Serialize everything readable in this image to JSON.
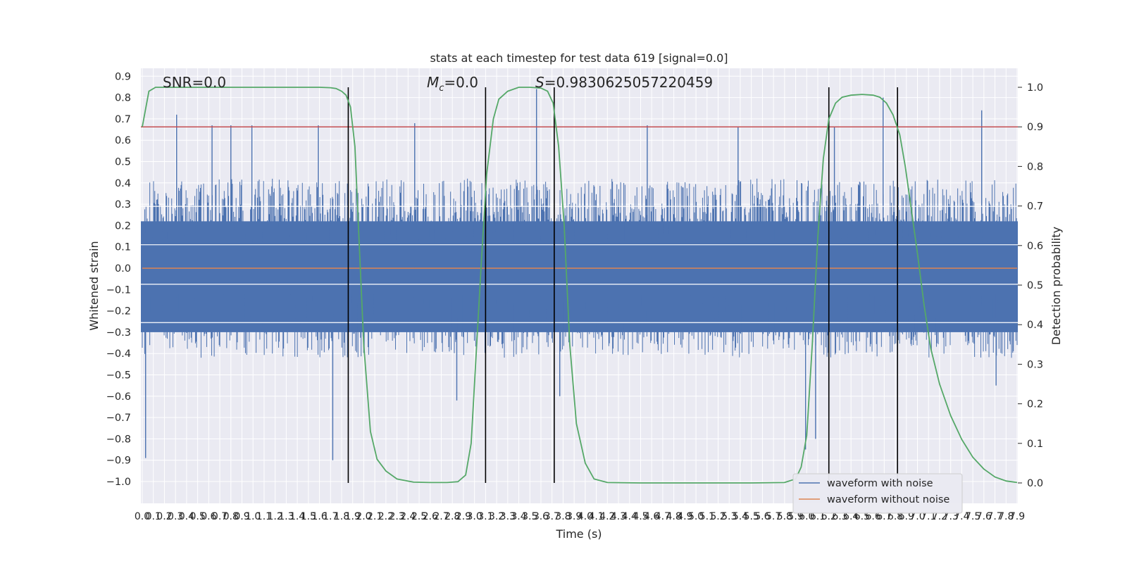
{
  "chart_data": {
    "type": "line",
    "title": "stats at each timestep for test data 619 [signal=0.0]",
    "xlabel": "Time (s)",
    "ylabel_left": "Whitened strain",
    "ylabel_right": "Detection probability",
    "xlim": [
      0.0,
      7.9
    ],
    "ylim_left": [
      -1.0,
      0.9
    ],
    "ylim_right": [
      0.0,
      1.0
    ],
    "x_ticks": [
      "0.0",
      "0.1",
      "0.2",
      "0.3",
      "0.4",
      "0.5",
      "0.6",
      "0.7",
      "0.8",
      "0.9",
      "1.0",
      "1.1",
      "1.2",
      "1.3",
      "1.4",
      "1.5",
      "1.6",
      "1.7",
      "1.8",
      "1.9",
      "2.0",
      "2.1",
      "2.2",
      "2.3",
      "2.4",
      "2.5",
      "2.6",
      "2.7",
      "2.8",
      "2.9",
      "3.0",
      "3.1",
      "3.2",
      "3.3",
      "3.4",
      "3.5",
      "3.6",
      "3.7",
      "3.8",
      "3.9",
      "4.0",
      "4.1",
      "4.2",
      "4.3",
      "4.4",
      "4.5",
      "4.6",
      "4.7",
      "4.8",
      "4.9",
      "5.0",
      "5.1",
      "5.2",
      "5.3",
      "5.4",
      "5.5",
      "5.6",
      "5.7",
      "5.8",
      "5.9",
      "6.0",
      "6.1",
      "6.2",
      "6.3",
      "6.4",
      "6.5",
      "6.6",
      "6.7",
      "6.8",
      "6.9",
      "7.0",
      "7.1",
      "7.2",
      "7.3",
      "7.4",
      "7.5",
      "7.6",
      "7.7",
      "7.8",
      "7.9"
    ],
    "y_ticks_left": [
      "0.9",
      "0.8",
      "0.7",
      "0.6",
      "0.5",
      "0.4",
      "0.3",
      "0.2",
      "0.1",
      "0.0",
      "−0.1",
      "−0.2",
      "−0.3",
      "−0.4",
      "−0.5",
      "−0.6",
      "−0.7",
      "−0.8",
      "−0.9",
      "−1.0"
    ],
    "y_ticks_right": [
      "1.0",
      "0.9",
      "0.8",
      "0.7",
      "0.6",
      "0.5",
      "0.4",
      "0.3",
      "0.2",
      "0.1",
      "0.0"
    ],
    "annotations": {
      "snr": "SNR=0.0",
      "mc": "M_c=0.0",
      "s": "S=0.9830625057220459"
    },
    "threshold_right": 0.9,
    "vertical_lines_x": [
      1.86,
      3.1,
      3.72,
      6.2,
      6.82
    ],
    "series": [
      {
        "name": "waveform with noise",
        "color": "#4c72b0",
        "axis": "left",
        "kind": "noise",
        "peaks_x": [
          0.03,
          0.31,
          0.63,
          0.8,
          0.99,
          1.59,
          1.72,
          2.46,
          2.84,
          3.56,
          3.77,
          4.56,
          5.38,
          5.99,
          6.08,
          6.25,
          6.69,
          6.82,
          7.58,
          7.71
        ],
        "peaks_y": [
          -0.89,
          0.72,
          0.67,
          0.67,
          0.67,
          0.67,
          -0.9,
          0.68,
          -0.62,
          0.84,
          -0.6,
          0.67,
          0.66,
          -0.85,
          -0.8,
          0.66,
          0.8,
          -0.78,
          0.74,
          -0.55
        ]
      },
      {
        "name": "waveform without noise",
        "color": "#dd8452",
        "axis": "left",
        "kind": "flat",
        "x": [
          0.0,
          7.9
        ],
        "y": [
          0.0,
          0.0
        ]
      },
      {
        "name": "Detection probability",
        "color": "#55a868",
        "axis": "right",
        "kind": "line",
        "x": [
          0.0,
          0.06,
          0.12,
          0.3,
          0.6,
          1.0,
          1.4,
          1.6,
          1.7,
          1.75,
          1.8,
          1.84,
          1.88,
          1.92,
          1.96,
          2.0,
          2.06,
          2.12,
          2.2,
          2.3,
          2.45,
          2.6,
          2.75,
          2.85,
          2.92,
          2.97,
          3.01,
          3.06,
          3.11,
          3.17,
          3.22,
          3.3,
          3.4,
          3.5,
          3.6,
          3.66,
          3.71,
          3.76,
          3.81,
          3.86,
          3.92,
          4.0,
          4.08,
          4.2,
          4.5,
          5.0,
          5.5,
          5.8,
          5.9,
          5.95,
          6.0,
          6.05,
          6.1,
          6.15,
          6.2,
          6.26,
          6.32,
          6.4,
          6.5,
          6.6,
          6.66,
          6.72,
          6.78,
          6.84,
          6.89,
          6.94,
          7.0,
          7.06,
          7.12,
          7.2,
          7.3,
          7.4,
          7.5,
          7.6,
          7.7,
          7.8,
          7.9
        ],
        "y": [
          0.9,
          0.99,
          1.0,
          1.0,
          1.0,
          1.0,
          1.0,
          1.0,
          0.999,
          0.997,
          0.99,
          0.98,
          0.95,
          0.85,
          0.6,
          0.35,
          0.13,
          0.06,
          0.03,
          0.01,
          0.002,
          0.001,
          0.001,
          0.003,
          0.02,
          0.1,
          0.3,
          0.55,
          0.78,
          0.92,
          0.97,
          0.99,
          1.0,
          1.0,
          0.998,
          0.99,
          0.96,
          0.85,
          0.65,
          0.35,
          0.15,
          0.05,
          0.01,
          0.001,
          0.0,
          0.0,
          0.0,
          0.001,
          0.01,
          0.04,
          0.12,
          0.35,
          0.62,
          0.82,
          0.92,
          0.96,
          0.975,
          0.98,
          0.982,
          0.98,
          0.975,
          0.96,
          0.93,
          0.88,
          0.8,
          0.7,
          0.58,
          0.45,
          0.34,
          0.25,
          0.17,
          0.11,
          0.065,
          0.035,
          0.015,
          0.005,
          0.001
        ]
      },
      {
        "name": "threshold",
        "color": "#c44e52",
        "axis": "right",
        "kind": "hline",
        "y": 0.9
      }
    ],
    "legend": {
      "placement": "lower-right",
      "entries": [
        "waveform with noise",
        "waveform without noise"
      ]
    },
    "grid": true
  }
}
